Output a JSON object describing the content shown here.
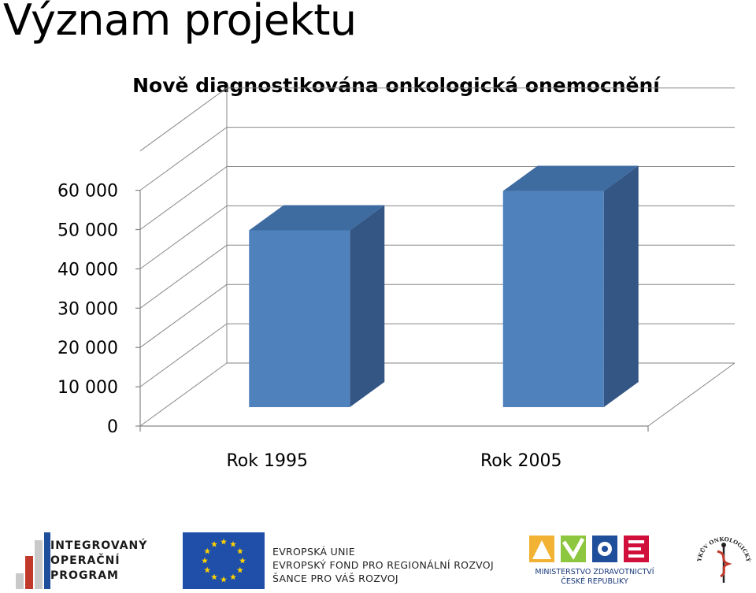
{
  "page": {
    "title": "Význam projektu"
  },
  "chart_data": {
    "type": "bar",
    "title": "Nově diagnostikována onkologická onemocnění",
    "categories": [
      "Rok 1995",
      "Rok 2005"
    ],
    "values": [
      45000,
      55000
    ],
    "ylim": [
      0,
      70000
    ],
    "yticks": [
      0,
      10000,
      20000,
      30000,
      40000,
      50000,
      60000
    ],
    "ytick_labels": [
      "0",
      "10 000",
      "20 000",
      "30 000",
      "40 000",
      "50 000",
      "60 000"
    ],
    "xlabel": "",
    "ylabel": "",
    "grid": true,
    "style": "3d-column",
    "colors": {
      "front": "#4F81BD",
      "top": "#3E6BA0",
      "side": "#335685"
    }
  },
  "footer": {
    "iop_lines": [
      "INTEGROVANÝ",
      "OPERAČNÍ",
      "PROGRAM"
    ],
    "eu_lines": [
      "EVROPSKÁ UNIE",
      "EVROPSKÝ FOND PRO REGIONÁLNÍ ROZVOJ",
      "ŠANCE PRO VÁŠ ROZVOJ"
    ],
    "mz_lines": [
      "MINISTERSTVO ZDRAVOTNICTVÍ",
      "ČESKÉ REPUBLIKY"
    ],
    "mou_text": "MASARYKŮV ONKOLOGICKÝ ÚSTAV"
  }
}
